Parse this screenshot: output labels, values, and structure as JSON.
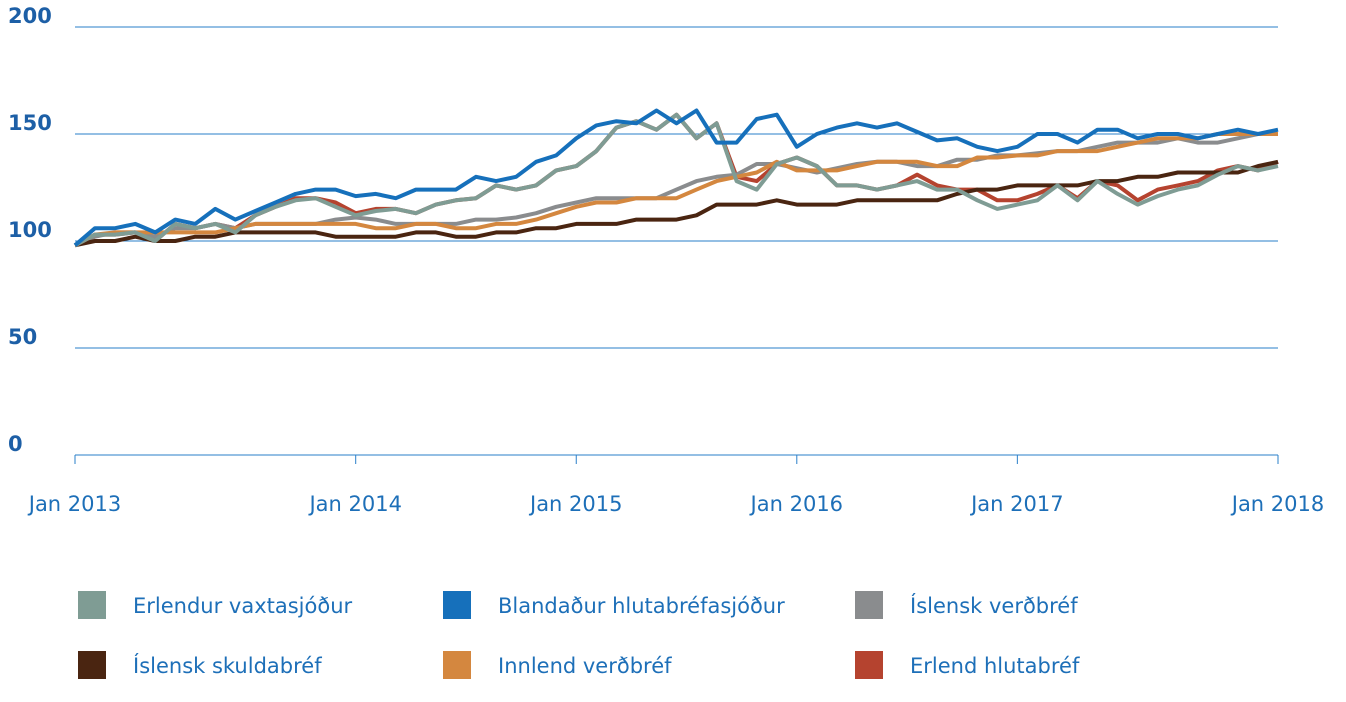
{
  "chart_data": {
    "type": "line",
    "categories": [
      "Jan 2013",
      null,
      null,
      null,
      null,
      null,
      null,
      null,
      null,
      null,
      null,
      null,
      null,
      null,
      "Jan 2014",
      null,
      null,
      null,
      null,
      null,
      null,
      null,
      null,
      null,
      null,
      "Jan 2015",
      null,
      null,
      null,
      null,
      null,
      null,
      null,
      null,
      null,
      null,
      "Jan 2016",
      null,
      null,
      null,
      null,
      null,
      null,
      null,
      null,
      null,
      null,
      "Jan 2017",
      null,
      null,
      null,
      null,
      null,
      null,
      null,
      null,
      null,
      null,
      null,
      null,
      "Jan 2018"
    ],
    "ylim": [
      0,
      200
    ],
    "yticks": [
      0,
      50,
      100,
      150,
      200
    ],
    "grid": true,
    "series": [
      {
        "name": "Erlend hlutabréf",
        "color": "#b5432f",
        "values": [
          98,
          103,
          103,
          104,
          100,
          108,
          106,
          108,
          106,
          112,
          116,
          120,
          120,
          118,
          113,
          115,
          115,
          113,
          117,
          119,
          120,
          126,
          124,
          126,
          133,
          135,
          142,
          153,
          156,
          152,
          159,
          148,
          155,
          130,
          128,
          136,
          139,
          135,
          126,
          126,
          124,
          126,
          131,
          126,
          124,
          124,
          119,
          119,
          122,
          126,
          120,
          128,
          126,
          119,
          124,
          126,
          128,
          133,
          135,
          133,
          137
        ]
      },
      {
        "name": "Íslensk verðbréf",
        "color": "#8a8c8e",
        "values": [
          98,
          102,
          104,
          104,
          102,
          106,
          106,
          108,
          106,
          108,
          108,
          108,
          108,
          110,
          111,
          110,
          108,
          108,
          108,
          108,
          110,
          110,
          111,
          113,
          116,
          118,
          120,
          120,
          120,
          120,
          124,
          128,
          130,
          131,
          136,
          136,
          134,
          132,
          134,
          136,
          137,
          137,
          135,
          135,
          138,
          138,
          140,
          140,
          141,
          142,
          142,
          144,
          146,
          146,
          146,
          148,
          146,
          146,
          148,
          150,
          150
        ]
      },
      {
        "name": "Íslensk skuldabréf",
        "color": "#4a2511",
        "values": [
          98,
          100,
          100,
          102,
          100,
          100,
          102,
          102,
          104,
          104,
          104,
          104,
          104,
          102,
          102,
          102,
          102,
          104,
          104,
          102,
          102,
          104,
          104,
          106,
          106,
          108,
          108,
          108,
          110,
          110,
          110,
          112,
          117,
          117,
          117,
          119,
          117,
          117,
          117,
          119,
          119,
          119,
          119,
          119,
          122,
          124,
          124,
          126,
          126,
          126,
          126,
          128,
          128,
          130,
          130,
          132,
          132,
          132,
          132,
          135,
          137
        ]
      },
      {
        "name": "Innlend verðbréf",
        "color": "#d4873f",
        "values": [
          98,
          103,
          104,
          104,
          104,
          104,
          104,
          104,
          106,
          108,
          108,
          108,
          108,
          108,
          108,
          106,
          106,
          108,
          108,
          106,
          106,
          108,
          108,
          110,
          113,
          116,
          118,
          118,
          120,
          120,
          120,
          124,
          128,
          130,
          132,
          137,
          133,
          133,
          133,
          135,
          137,
          137,
          137,
          135,
          135,
          139,
          139,
          140,
          140,
          142,
          142,
          142,
          144,
          146,
          148,
          148,
          148,
          150,
          150,
          150,
          150
        ]
      },
      {
        "name": "Erlendur vaxtasjóður",
        "color": "#7f9c94",
        "values": [
          98,
          103,
          103,
          104,
          100,
          108,
          106,
          108,
          104,
          112,
          116,
          119,
          120,
          116,
          112,
          114,
          115,
          113,
          117,
          119,
          120,
          126,
          124,
          126,
          133,
          135,
          142,
          153,
          156,
          152,
          159,
          148,
          155,
          128,
          124,
          136,
          139,
          135,
          126,
          126,
          124,
          126,
          128,
          124,
          124,
          119,
          115,
          117,
          119,
          126,
          119,
          128,
          122,
          117,
          121,
          124,
          126,
          131,
          135,
          133,
          135
        ]
      },
      {
        "name": "Blandaður hlutabréfasjóður",
        "color": "#1670bb",
        "values": [
          98,
          106,
          106,
          108,
          104,
          110,
          108,
          115,
          110,
          114,
          118,
          122,
          124,
          124,
          121,
          122,
          120,
          124,
          124,
          124,
          130,
          128,
          130,
          137,
          140,
          148,
          154,
          156,
          155,
          161,
          155,
          161,
          146,
          146,
          157,
          159,
          144,
          150,
          153,
          155,
          153,
          155,
          151,
          147,
          148,
          144,
          142,
          144,
          150,
          150,
          146,
          152,
          152,
          148,
          150,
          150,
          148,
          150,
          152,
          150,
          152
        ]
      }
    ]
  }
}
